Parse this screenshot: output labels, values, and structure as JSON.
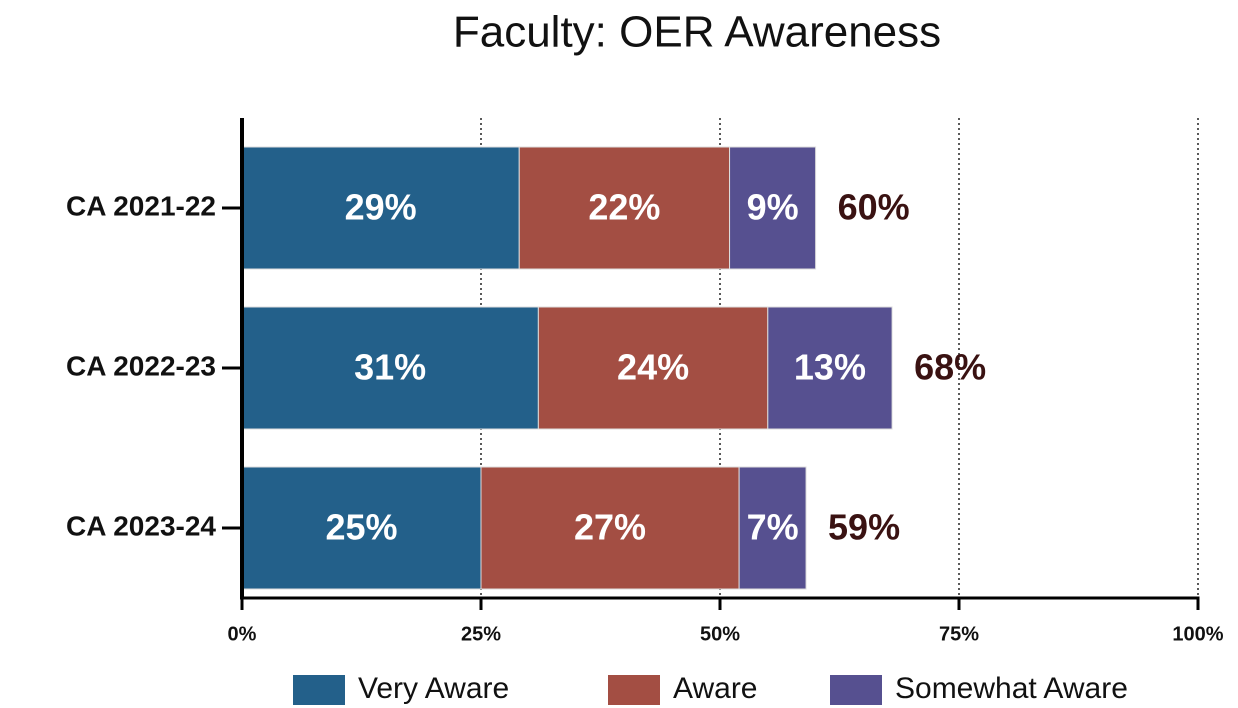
{
  "chart_data": {
    "type": "stacked_barh",
    "title": "Faculty: OER Awareness",
    "categories": [
      "CA 2021-22",
      "CA 2022-23",
      "CA 2023-24"
    ],
    "series": [
      {
        "name": "Very Aware",
        "color": "#23608a",
        "values": [
          29,
          31,
          25
        ],
        "value_labels": [
          "29%",
          "31%",
          "25%"
        ]
      },
      {
        "name": "Aware",
        "color": "#a34e43",
        "values": [
          22,
          24,
          27
        ],
        "value_labels": [
          "22%",
          "24%",
          "27%"
        ]
      },
      {
        "name": "Somewhat Aware",
        "color": "#565090",
        "values": [
          9,
          13,
          7
        ],
        "value_labels": [
          "9%",
          "13%",
          "7%"
        ]
      }
    ],
    "totals": [
      60,
      68,
      59
    ],
    "total_labels": [
      "60%",
      "68%",
      "59%"
    ],
    "total_color": "#3a1212",
    "xlim": [
      0,
      100
    ],
    "xticks": [
      {
        "value": 0,
        "label": "0%"
      },
      {
        "value": 25,
        "label": "25%"
      },
      {
        "value": 50,
        "label": "50%"
      },
      {
        "value": 75,
        "label": "75%"
      },
      {
        "value": 100,
        "label": "100%"
      }
    ],
    "grid": true,
    "legend": "bottom"
  }
}
